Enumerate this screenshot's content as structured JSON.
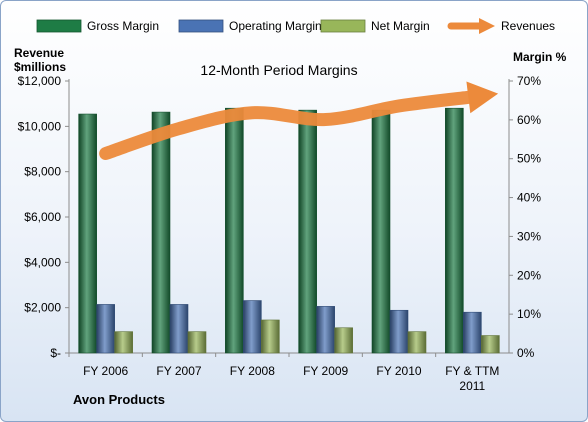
{
  "chart_data": {
    "type": "bar",
    "title": "12-Month Period Margins",
    "left_axis_title": [
      "Revenue",
      "$millions"
    ],
    "right_axis_title": "Margin %",
    "categories": [
      "FY 2006",
      "FY 2007",
      "FY 2008",
      "FY 2009",
      "FY 2010",
      "FY & TTM 2011"
    ],
    "category_lines": [
      [
        "FY 2006"
      ],
      [
        "FY 2007"
      ],
      [
        "FY 2008"
      ],
      [
        "FY 2009"
      ],
      [
        "FY 2010"
      ],
      [
        "FY & TTM",
        "2011"
      ]
    ],
    "left_ylim": [
      0,
      12000
    ],
    "left_ticks": [
      0,
      2000,
      4000,
      6000,
      8000,
      10000,
      12000
    ],
    "left_tick_labels": [
      "$-",
      "$2,000",
      "$4,000",
      "$6,000",
      "$8,000",
      "$10,000",
      "$12,000"
    ],
    "right_ylim": [
      0,
      70
    ],
    "right_ticks": [
      0,
      10,
      20,
      30,
      40,
      50,
      60,
      70
    ],
    "right_tick_labels": [
      "0%",
      "10%",
      "20%",
      "30%",
      "40%",
      "50%",
      "60%",
      "70%"
    ],
    "series": [
      {
        "name": "Gross Margin",
        "axis": "right",
        "kind": "bar",
        "color": "#1e7c45",
        "values": [
          61.5,
          62,
          63,
          62.5,
          62.5,
          63
        ]
      },
      {
        "name": "Operating Margin",
        "axis": "right",
        "kind": "bar",
        "color": "#4a73b4",
        "values": [
          12.5,
          12.5,
          13.5,
          12,
          11,
          10.5
        ]
      },
      {
        "name": "Net Margin",
        "axis": "right",
        "kind": "bar",
        "color": "#98b65a",
        "values": [
          5.5,
          5.5,
          8.5,
          6.5,
          5.5,
          4.5
        ]
      },
      {
        "name": "Revenues",
        "axis": "left",
        "kind": "arrow",
        "color": "#ec8a3b",
        "values": [
          8800,
          9900,
          10600,
          10300,
          10900,
          11300
        ]
      }
    ],
    "legend_position": "top",
    "grid": false,
    "footnote": "Avon Products"
  }
}
